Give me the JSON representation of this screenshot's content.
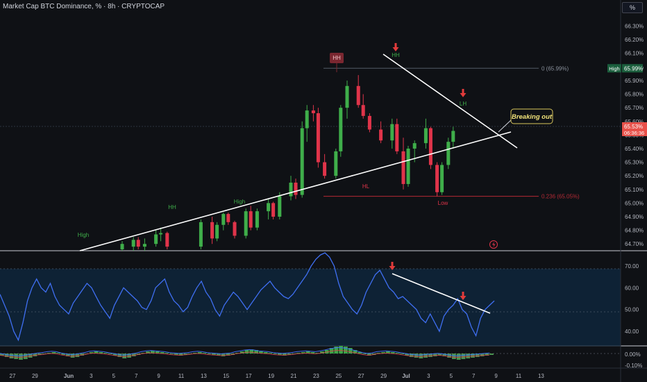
{
  "header": {
    "title": "Market Cap BTC Dominance, % · 8h · CRYPTOCAP",
    "scale_button": "%"
  },
  "colors": {
    "background": "#0f1115",
    "bull": "#3fae4a",
    "bear": "#e0344a",
    "rsi": "#3f6ff2",
    "rsi_band": "#0e2538",
    "fib_zero": "#525a66",
    "fib_236": "#b52a35",
    "price_tag": "#e8514a",
    "high_tag": "#1b5e3d",
    "arrow": "#e23b3b"
  },
  "chart_data": [
    {
      "type": "candlestick",
      "title": "Market Cap BTC Dominance, % · 8h · CRYPTOCAP",
      "ylim": [
        64.65,
        66.42
      ],
      "y_ticks": [
        "66.30%",
        "66.20%",
        "66.10%",
        "66.00%",
        "65.90%",
        "65.80%",
        "65.70%",
        "65.60%",
        "65.50%",
        "65.40%",
        "65.30%",
        "65.20%",
        "65.10%",
        "65.00%",
        "64.90%",
        "64.80%",
        "64.70%"
      ],
      "x_ticks": [
        "27",
        "29",
        "Jun",
        "3",
        "5",
        "7",
        "9",
        "11",
        "13",
        "15",
        "17",
        "19",
        "21",
        "23",
        "25",
        "27",
        "29",
        "Jul",
        "3",
        "5",
        "7",
        "9",
        "11",
        "13"
      ],
      "candles": [
        {
          "x": "Jun 6",
          "open": 64.66,
          "high": 64.72,
          "low": 64.64,
          "close": 64.7
        },
        {
          "x": "Jun 7",
          "open": 64.68,
          "high": 64.75,
          "low": 64.65,
          "close": 64.73
        },
        {
          "x": "Jun 7",
          "open": 64.73,
          "high": 64.75,
          "low": 64.66,
          "close": 64.68
        },
        {
          "x": "Jun 8",
          "open": 64.68,
          "high": 64.74,
          "low": 64.64,
          "close": 64.7
        },
        {
          "x": "Jun 9",
          "open": 64.7,
          "high": 64.8,
          "low": 64.68,
          "close": 64.77
        },
        {
          "x": "Jun 9",
          "open": 64.77,
          "high": 64.82,
          "low": 64.72,
          "close": 64.78
        },
        {
          "x": "Jun 10",
          "open": 64.78,
          "high": 64.79,
          "low": 64.66,
          "close": 64.68
        },
        {
          "x": "Jun 13",
          "open": 64.68,
          "high": 64.88,
          "low": 64.66,
          "close": 64.86
        },
        {
          "x": "Jun 14",
          "open": 64.86,
          "high": 64.9,
          "low": 64.7,
          "close": 64.74
        },
        {
          "x": "Jun 14",
          "open": 64.74,
          "high": 64.86,
          "low": 64.72,
          "close": 64.84
        },
        {
          "x": "Jun 15",
          "open": 64.84,
          "high": 64.93,
          "low": 64.8,
          "close": 64.92
        },
        {
          "x": "Jun 15",
          "open": 64.92,
          "high": 64.93,
          "low": 64.84,
          "close": 64.86
        },
        {
          "x": "Jun 16",
          "open": 64.86,
          "high": 64.87,
          "low": 64.74,
          "close": 64.76
        },
        {
          "x": "Jun 17",
          "open": 64.76,
          "high": 64.96,
          "low": 64.74,
          "close": 64.94
        },
        {
          "x": "Jun 17",
          "open": 64.94,
          "high": 64.98,
          "low": 64.8,
          "close": 64.82
        },
        {
          "x": "Jun 18",
          "open": 64.82,
          "high": 64.96,
          "low": 64.8,
          "close": 64.94
        },
        {
          "x": "Jun 19",
          "open": 64.94,
          "high": 65.03,
          "low": 64.88,
          "close": 65.0
        },
        {
          "x": "Jun 19",
          "open": 65.0,
          "high": 65.01,
          "low": 64.88,
          "close": 64.9
        },
        {
          "x": "Jun 20",
          "open": 64.9,
          "high": 65.08,
          "low": 64.88,
          "close": 65.05
        },
        {
          "x": "Jun 21",
          "open": 65.05,
          "high": 65.2,
          "low": 65.02,
          "close": 65.15
        },
        {
          "x": "Jun 21",
          "open": 65.15,
          "high": 65.18,
          "low": 65.03,
          "close": 65.06
        },
        {
          "x": "Jun 22",
          "open": 65.06,
          "high": 65.6,
          "low": 65.04,
          "close": 65.55
        },
        {
          "x": "Jun 22",
          "open": 65.55,
          "high": 65.72,
          "low": 65.45,
          "close": 65.68
        },
        {
          "x": "Jun 23",
          "open": 65.68,
          "high": 65.72,
          "low": 65.6,
          "close": 65.66
        },
        {
          "x": "Jun 23",
          "open": 65.66,
          "high": 65.7,
          "low": 65.26,
          "close": 65.3
        },
        {
          "x": "Jun 24",
          "open": 65.3,
          "high": 65.36,
          "low": 65.18,
          "close": 65.2
        },
        {
          "x": "Jun 25",
          "open": 65.2,
          "high": 65.4,
          "low": 65.18,
          "close": 65.38
        },
        {
          "x": "Jun 25",
          "open": 65.38,
          "high": 65.72,
          "low": 65.34,
          "close": 65.7
        },
        {
          "x": "Jun 26",
          "open": 65.7,
          "high": 65.9,
          "low": 65.62,
          "close": 65.86
        },
        {
          "x": "Jun 27",
          "open": 65.86,
          "high": 65.94,
          "low": 65.7,
          "close": 65.72
        },
        {
          "x": "Jun 27",
          "open": 65.72,
          "high": 65.8,
          "low": 65.62,
          "close": 65.64
        },
        {
          "x": "Jun 28",
          "open": 65.64,
          "high": 65.66,
          "low": 65.52,
          "close": 65.54
        },
        {
          "x": "Jun 29",
          "open": 65.54,
          "high": 65.6,
          "low": 65.44,
          "close": 65.46
        },
        {
          "x": "Jun 30",
          "open": 65.46,
          "high": 65.62,
          "low": 65.4,
          "close": 65.58
        },
        {
          "x": "Jun 30",
          "open": 65.58,
          "high": 65.62,
          "low": 65.36,
          "close": 65.38
        },
        {
          "x": "Jul 1",
          "open": 65.38,
          "high": 65.48,
          "low": 65.1,
          "close": 65.14
        },
        {
          "x": "Jul 1",
          "open": 65.14,
          "high": 65.42,
          "low": 65.12,
          "close": 65.4
        },
        {
          "x": "Jul 2",
          "open": 65.4,
          "high": 65.46,
          "low": 65.3,
          "close": 65.44
        },
        {
          "x": "Jul 3",
          "open": 65.44,
          "high": 65.62,
          "low": 65.4,
          "close": 65.55
        },
        {
          "x": "Jul 3",
          "open": 65.55,
          "high": 65.56,
          "low": 65.25,
          "close": 65.28
        },
        {
          "x": "Jul 4",
          "open": 65.28,
          "high": 65.3,
          "low": 65.05,
          "close": 65.08
        },
        {
          "x": "Jul 4",
          "open": 65.08,
          "high": 65.3,
          "low": 65.06,
          "close": 65.28
        },
        {
          "x": "Jul 5",
          "open": 65.28,
          "high": 65.48,
          "low": 65.25,
          "close": 65.45
        },
        {
          "x": "Jul 5",
          "open": 65.45,
          "high": 65.56,
          "low": 65.4,
          "close": 65.53
        }
      ],
      "horizontal_levels": [
        {
          "label": "0 (65.99%)",
          "value": 65.99
        },
        {
          "label": "0.236 (65.05%)",
          "value": 65.05
        }
      ],
      "price_tags": [
        {
          "label": "High",
          "value": "65.99%"
        },
        {
          "label": "65.53%",
          "countdown": "06:36:36"
        }
      ],
      "pivot_labels": [
        "High",
        "HH",
        "High",
        "HH",
        "HH",
        "LH",
        "HL",
        "Low"
      ],
      "callout": "Breaking out"
    },
    {
      "type": "line",
      "name": "RSI",
      "ylim": [
        34,
        76
      ],
      "y_ticks": [
        "70.00",
        "60.00",
        "50.00",
        "40.00"
      ],
      "values": [
        57,
        52,
        47,
        40,
        36,
        44,
        54,
        60,
        64,
        60,
        58,
        62,
        56,
        52,
        50,
        48,
        53,
        56,
        59,
        62,
        60,
        56,
        52,
        49,
        46,
        52,
        56,
        60,
        58,
        56,
        54,
        51,
        50,
        54,
        60,
        62,
        64,
        58,
        54,
        52,
        49,
        51,
        56,
        60,
        63,
        58,
        55,
        50,
        47,
        52,
        55,
        58,
        56,
        53,
        50,
        53,
        56,
        59,
        61,
        63,
        60,
        58,
        56,
        55,
        57,
        60,
        63,
        66,
        70,
        73,
        75,
        76,
        74,
        70,
        62,
        56,
        53,
        50,
        48,
        52,
        58,
        62,
        66,
        68,
        64,
        60,
        58,
        55,
        56,
        54,
        52,
        50,
        46,
        44,
        48,
        44,
        40,
        47,
        50,
        52,
        55,
        50,
        48,
        42,
        38,
        46,
        50,
        52,
        54
      ]
    },
    {
      "type": "bar",
      "name": "MACD",
      "y_ticks": [
        "0.00%",
        "-0.10%"
      ],
      "values": [
        -0.3,
        -0.5,
        -0.7,
        -0.8,
        -0.9,
        -0.8,
        -0.6,
        -0.4,
        -0.2,
        -0.1,
        0.1,
        0.2,
        0.1,
        -0.2,
        -0.4,
        -0.6,
        -0.5,
        -0.3,
        -0.1,
        0.2,
        0.3,
        0.2,
        0.1,
        -0.1,
        -0.3,
        -0.5,
        -0.7,
        -0.6,
        -0.4,
        -0.2,
        0.1,
        0.3,
        0.4,
        0.3,
        0.2,
        0.1,
        -0.1,
        -0.2,
        -0.3,
        -0.2,
        -0.1,
        0.1,
        0.2,
        0.1,
        -0.1,
        -0.2,
        -0.3,
        -0.4,
        -0.3,
        -0.2,
        0.1,
        0.3,
        0.5,
        0.6,
        0.5,
        0.3,
        0.2,
        0.1,
        -0.1,
        -0.2,
        -0.3,
        -0.2,
        -0.1,
        0.1,
        0.2,
        0.3,
        0.2,
        0.1,
        0.3,
        0.5,
        0.8,
        1.0,
        1.1,
        1.0,
        0.8,
        0.5,
        0.2,
        -0.1,
        -0.3,
        -0.2,
        0.1,
        0.2,
        0.3,
        0.2,
        0.1,
        -0.1,
        -0.3,
        -0.5,
        -0.6,
        -0.7,
        -0.6,
        -0.5,
        -0.4,
        -0.3,
        -0.4,
        -0.6,
        -0.8,
        -0.9,
        -0.8,
        -0.7,
        -0.6,
        -0.5,
        -0.4,
        -0.3,
        -0.2
      ]
    }
  ]
}
